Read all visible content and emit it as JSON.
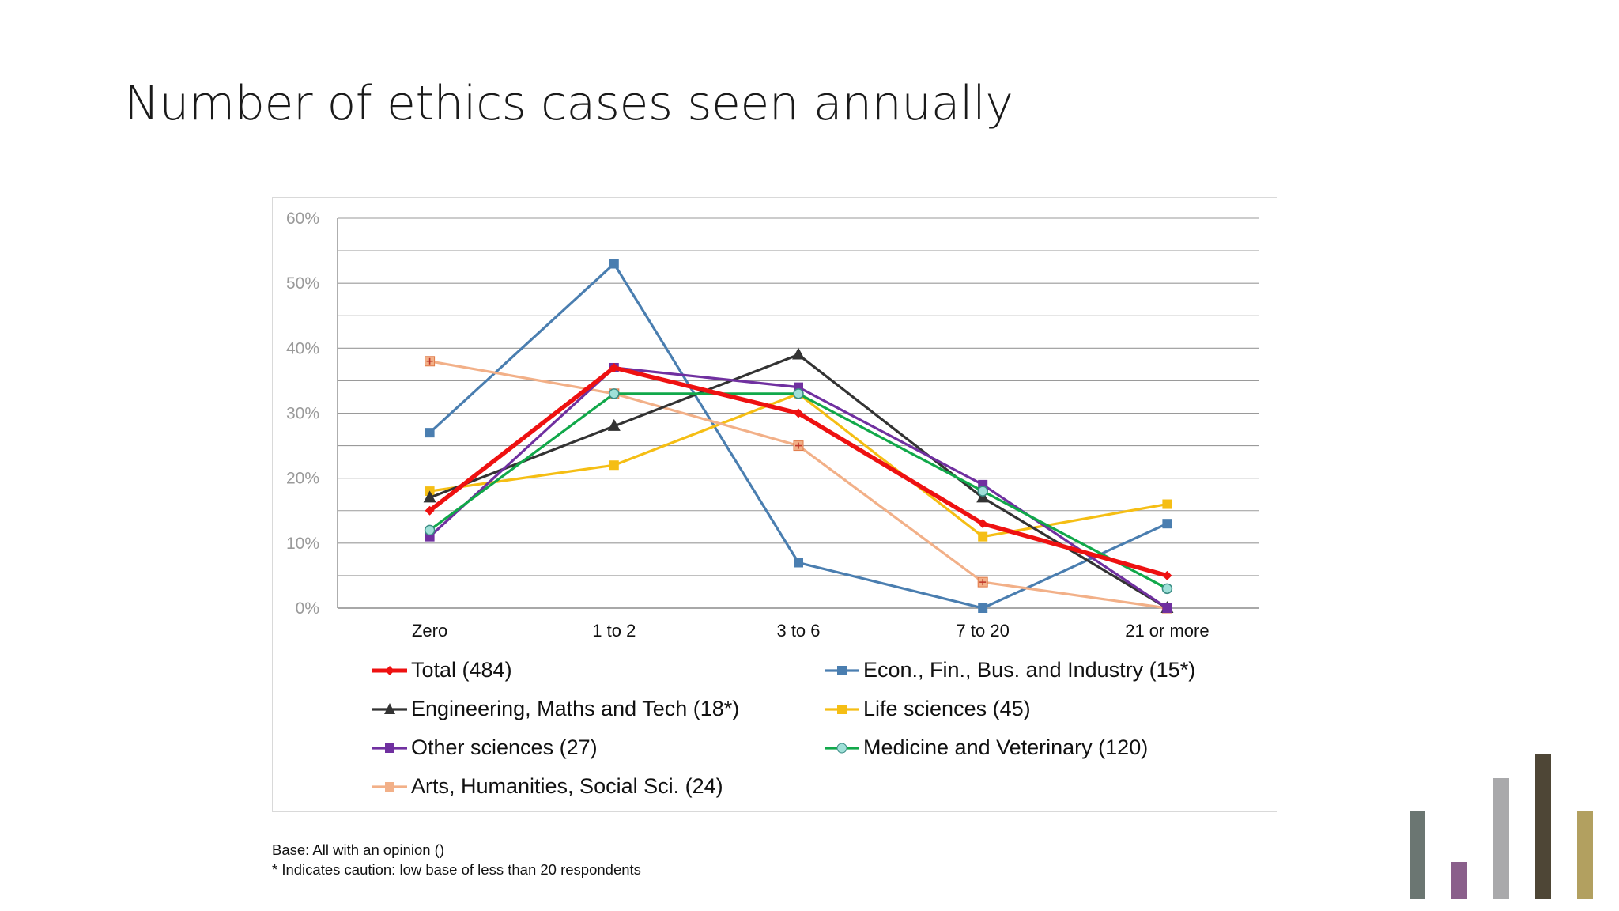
{
  "slide": {
    "title": "Number of ethics cases seen annually",
    "footnote_base": "Base: All with an opinion ()",
    "footnote_caution": "* Indicates caution: low base of less than 20 respondents"
  },
  "chart_data": {
    "type": "line",
    "categories": [
      "Zero",
      "1 to 2",
      "3 to 6",
      "7 to 20",
      "21 or more"
    ],
    "ylim": [
      0,
      60
    ],
    "yticks": [
      0,
      10,
      20,
      30,
      40,
      50,
      60
    ],
    "ytick_labels": [
      "0%",
      "10%",
      "20%",
      "30%",
      "40%",
      "50%",
      "60%"
    ],
    "grid": true,
    "legend_position": "bottom",
    "series": [
      {
        "name": "Total (484)",
        "color": "#ee1111",
        "marker": "diamond",
        "values": [
          15,
          37,
          30,
          13,
          5
        ]
      },
      {
        "name": "Econ., Fin., Bus. and Industry (15*)",
        "color": "#4a7eb0",
        "marker": "square",
        "values": [
          27,
          53,
          7,
          0,
          13
        ]
      },
      {
        "name": "Engineering,  Maths and Tech (18*)",
        "color": "#333333",
        "marker": "triangle",
        "values": [
          17,
          28,
          39,
          17,
          0
        ]
      },
      {
        "name": "Life sciences (45)",
        "color": "#f5be14",
        "marker": "square",
        "values": [
          18,
          22,
          33,
          11,
          16
        ]
      },
      {
        "name": "Other sciences (27)",
        "color": "#7030a0",
        "marker": "square",
        "values": [
          11,
          37,
          34,
          19,
          0
        ]
      },
      {
        "name": "Medicine and Veterinary (120)",
        "color": "#11a84a",
        "marker": "circle",
        "values": [
          12,
          33,
          33,
          18,
          3
        ]
      },
      {
        "name": "Arts, Humanities, Social Sci. (24)",
        "color": "#f2b088",
        "marker": "plus",
        "values": [
          38,
          33,
          25,
          4,
          0
        ]
      }
    ]
  },
  "decor": {
    "bar_colors": [
      "#6b7672",
      "#8a5f8b",
      "#a9a9ab",
      "#4e4636",
      "#b2a060"
    ],
    "bar_levels": [
      0.55,
      0.23,
      0.75,
      0.9,
      0.55
    ]
  }
}
